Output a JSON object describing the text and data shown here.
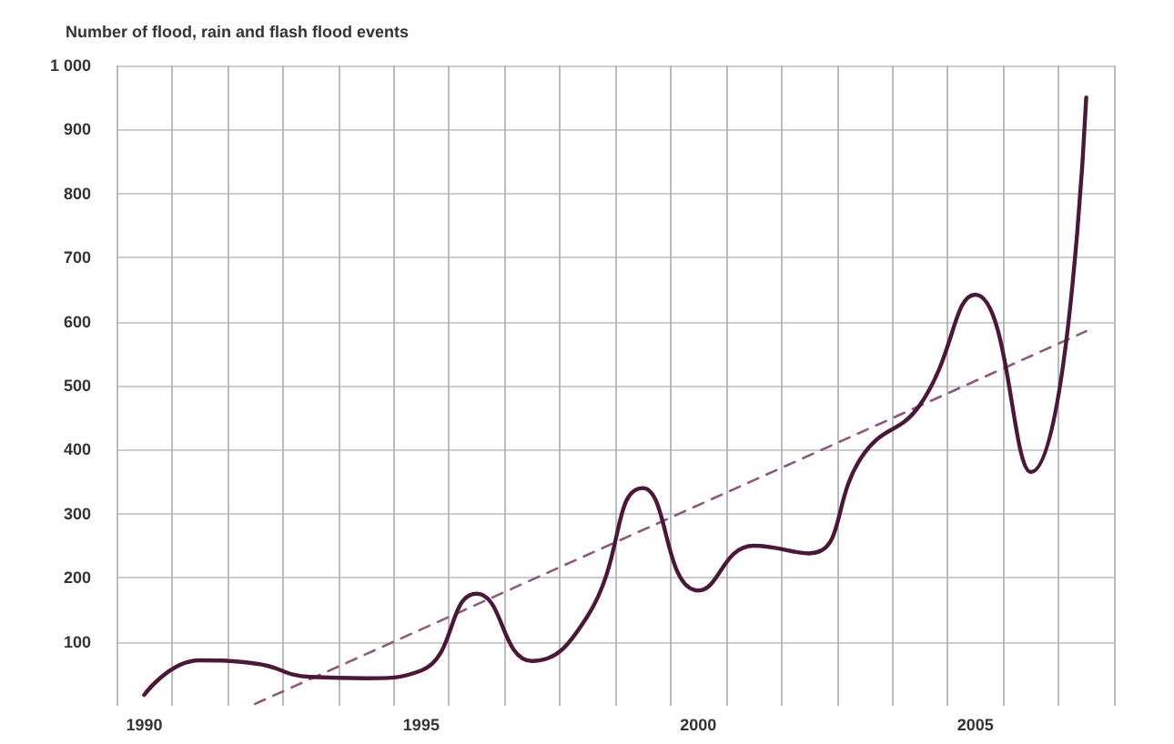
{
  "chart_data": {
    "type": "line",
    "ylabel": "Number of flood, rain and flash flood events",
    "x": [
      1990,
      1991,
      1992,
      1993,
      1994,
      1995,
      1996,
      1997,
      1998,
      1999,
      2000,
      2001,
      2002,
      2003,
      2004,
      2005,
      2006,
      2007
    ],
    "series": [
      {
        "color": "#4a1838",
        "values": [
          17,
          71,
          66,
          45,
          43,
          55,
          175,
          70,
          140,
          340,
          180,
          250,
          238,
          395,
          470,
          642,
          365,
          950
        ]
      },
      {
        "type": "line",
        "color": "#8a5a7e",
        "line_style": "dashed",
        "x": [
          1992,
          2007
        ],
        "values": [
          3,
          585
        ]
      }
    ],
    "xlim": [
      1989.5,
      2007.5
    ],
    "xticks": [
      {
        "value": 1989.5,
        "label": null
      },
      1990,
      {
        "value": 1990.5,
        "label": null
      },
      {
        "value": 1991.5,
        "label": null
      },
      {
        "value": 1992.5,
        "label": null
      },
      {
        "value": 1993.5,
        "label": null
      },
      {
        "value": 1994.5,
        "label": null
      },
      1995,
      {
        "value": 1995.5,
        "label": null
      },
      {
        "value": 1996.5,
        "label": null
      },
      {
        "value": 1997.5,
        "label": null
      },
      {
        "value": 1998.5,
        "label": null
      },
      {
        "value": 1999.5,
        "label": null
      },
      2000,
      {
        "value": 2000.5,
        "label": null
      },
      {
        "value": 2001.5,
        "label": null
      },
      {
        "value": 2002.5,
        "label": null
      },
      {
        "value": 2003.5,
        "label": null
      },
      {
        "value": 2004.5,
        "label": null
      },
      2005,
      {
        "value": 2005.5,
        "label": null
      },
      {
        "value": 2006.5,
        "label": null
      },
      {
        "value": 2007.5,
        "label": null
      }
    ],
    "ylim": [
      0,
      1000
    ],
    "yticks": [
      100,
      200,
      300,
      400,
      500,
      600,
      700,
      800,
      900,
      {
        "value": 1000,
        "label": "1 000"
      }
    ],
    "grid": true,
    "marker": "none",
    "line_style": "solid"
  }
}
